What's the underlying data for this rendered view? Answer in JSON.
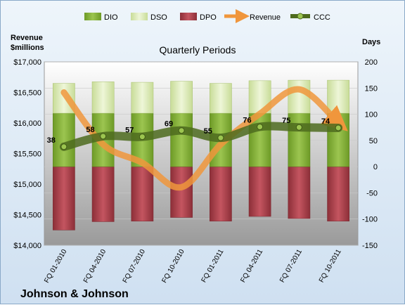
{
  "chart_data": {
    "type": "bar",
    "title": "Quarterly Periods",
    "company": "Johnson & Johnson",
    "left_axis_label": [
      "Revenue",
      "$millions"
    ],
    "right_axis_label": "Days",
    "categories": [
      "FQ 01-2010",
      "FQ 04-2010",
      "FQ 07-2010",
      "FQ 10-2010",
      "FQ 01-2011",
      "FQ 04-2011",
      "FQ 07-2011",
      "FQ 10-2011"
    ],
    "left_axis": {
      "min": 14000,
      "max": 17000,
      "ticks": [
        "$14,000",
        "$14,500",
        "$15,000",
        "$15,500",
        "$16,000",
        "$16,500",
        "$17,000"
      ]
    },
    "right_axis": {
      "min": -150,
      "max": 200,
      "ticks": [
        "-150",
        "-100",
        "-50",
        "0",
        "50",
        "100",
        "150",
        "200"
      ]
    },
    "series": [
      {
        "name": "DIO",
        "axis": "right",
        "kind": "stacked-bar",
        "color": "#7fa832",
        "values": [
          102,
          102,
          102,
          102,
          102,
          102,
          102,
          102
        ]
      },
      {
        "name": "DSO",
        "axis": "right",
        "kind": "stacked-bar",
        "color": "#d8e8b0",
        "values": [
          57,
          60,
          59,
          61,
          57,
          62,
          63,
          63
        ]
      },
      {
        "name": "DPO",
        "axis": "right",
        "kind": "stacked-bar",
        "color": "#b0414b",
        "values": [
          -121,
          -105,
          -104,
          -97,
          -104,
          -95,
          -99,
          -104
        ]
      },
      {
        "name": "Revenue",
        "axis": "left",
        "kind": "line",
        "color": "#f0963c",
        "values": [
          16500,
          15650,
          15350,
          14950,
          15650,
          16150,
          16550,
          16000
        ]
      },
      {
        "name": "CCC",
        "axis": "right",
        "kind": "line",
        "color": "#4e6b1e",
        "values": [
          38,
          58,
          57,
          69,
          55,
          76,
          75,
          74
        ],
        "labels": [
          "38",
          "58",
          "57",
          "69",
          "55",
          "76",
          "75",
          "74"
        ]
      }
    ]
  }
}
